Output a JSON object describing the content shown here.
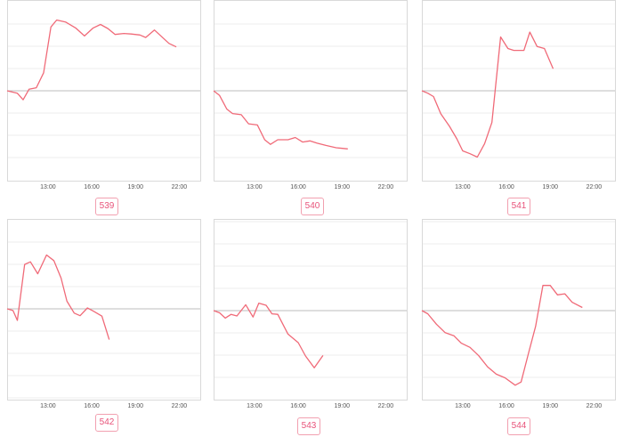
{
  "style": {
    "line_color": "#f06a78",
    "grid_color": "#eeeeee",
    "baseline_color": "#bdbdbd",
    "frame_color": "#d9d9d9",
    "badge_color": "#e8537a"
  },
  "chart_data": [
    {
      "type": "line",
      "id": "539",
      "x_ticks": [
        "13:00",
        "16:00",
        "19:00",
        "22:00"
      ],
      "x_range": [
        10.2,
        23.5
      ],
      "values": [
        [
          10.2,
          0
        ],
        [
          10.9,
          -0.05
        ],
        [
          11.3,
          -0.18
        ],
        [
          11.7,
          0.03
        ],
        [
          12.2,
          0.06
        ],
        [
          12.7,
          0.36
        ],
        [
          13.2,
          1.28
        ],
        [
          13.6,
          1.42
        ],
        [
          14.2,
          1.38
        ],
        [
          14.9,
          1.26
        ],
        [
          15.5,
          1.1
        ],
        [
          16.1,
          1.26
        ],
        [
          16.6,
          1.33
        ],
        [
          17.1,
          1.25
        ],
        [
          17.6,
          1.13
        ],
        [
          18.2,
          1.15
        ],
        [
          18.7,
          1.14
        ],
        [
          19.3,
          1.12
        ],
        [
          19.7,
          1.07
        ],
        [
          20.3,
          1.22
        ],
        [
          21.3,
          0.95
        ],
        [
          21.8,
          0.88
        ]
      ]
    },
    {
      "type": "line",
      "id": "540",
      "x_ticks": [
        "13:00",
        "16:00",
        "19:00",
        "22:00"
      ],
      "x_range": [
        10.2,
        23.5
      ],
      "values": [
        [
          10.2,
          0
        ],
        [
          10.6,
          -0.08
        ],
        [
          11.1,
          -0.32
        ],
        [
          11.5,
          -0.4
        ],
        [
          12.1,
          -0.42
        ],
        [
          12.6,
          -0.58
        ],
        [
          13.2,
          -0.6
        ],
        [
          13.7,
          -0.86
        ],
        [
          14.1,
          -0.94
        ],
        [
          14.6,
          -0.86
        ],
        [
          15.3,
          -0.86
        ],
        [
          15.8,
          -0.82
        ],
        [
          16.3,
          -0.9
        ],
        [
          16.8,
          -0.88
        ],
        [
          17.3,
          -0.92
        ],
        [
          17.9,
          -0.96
        ],
        [
          18.6,
          -1.0
        ],
        [
          19.4,
          -1.02
        ]
      ]
    },
    {
      "type": "line",
      "id": "541",
      "x_ticks": [
        "13:00",
        "16:00",
        "19:00",
        "22:00"
      ],
      "x_range": [
        10.2,
        23.5
      ],
      "values": [
        [
          10.2,
          0
        ],
        [
          10.6,
          -0.05
        ],
        [
          11.0,
          -0.12
        ],
        [
          11.5,
          -0.48
        ],
        [
          12.1,
          -0.74
        ],
        [
          12.6,
          -1.0
        ],
        [
          13.0,
          -1.25
        ],
        [
          13.5,
          -1.31
        ],
        [
          14.0,
          -1.38
        ],
        [
          14.5,
          -1.1
        ],
        [
          15.0,
          -0.66
        ],
        [
          15.6,
          1.12
        ],
        [
          16.1,
          0.88
        ],
        [
          16.5,
          0.84
        ],
        [
          17.2,
          0.84
        ],
        [
          17.6,
          1.22
        ],
        [
          18.1,
          0.92
        ],
        [
          18.6,
          0.88
        ],
        [
          19.2,
          0.46
        ]
      ]
    },
    {
      "type": "line",
      "id": "542",
      "x_ticks": [
        "13:00",
        "16:00",
        "19:00",
        "22:00"
      ],
      "x_range": [
        10.2,
        23.5
      ],
      "values": [
        [
          10.2,
          0
        ],
        [
          10.6,
          -0.04
        ],
        [
          10.9,
          -0.27
        ],
        [
          11.4,
          1.04
        ],
        [
          11.8,
          1.1
        ],
        [
          12.3,
          0.82
        ],
        [
          12.9,
          1.26
        ],
        [
          13.4,
          1.13
        ],
        [
          13.9,
          0.72
        ],
        [
          14.3,
          0.18
        ],
        [
          14.8,
          -0.1
        ],
        [
          15.2,
          -0.16
        ],
        [
          15.7,
          0.02
        ],
        [
          16.1,
          -0.05
        ],
        [
          16.7,
          -0.17
        ],
        [
          17.2,
          -0.72
        ]
      ]
    },
    {
      "type": "line",
      "id": "543",
      "x_ticks": [
        "13:00",
        "16:00",
        "19:00",
        "22:00"
      ],
      "x_range": [
        10.2,
        23.5
      ],
      "values": [
        [
          10.2,
          0
        ],
        [
          10.6,
          -0.04
        ],
        [
          11.0,
          -0.14
        ],
        [
          11.4,
          -0.07
        ],
        [
          11.8,
          -0.1
        ],
        [
          12.4,
          0.11
        ],
        [
          12.9,
          -0.12
        ],
        [
          13.3,
          0.14
        ],
        [
          13.8,
          0.1
        ],
        [
          14.2,
          -0.06
        ],
        [
          14.6,
          -0.07
        ],
        [
          15.3,
          -0.44
        ],
        [
          16.0,
          -0.6
        ],
        [
          16.5,
          -0.85
        ],
        [
          17.1,
          -1.07
        ],
        [
          17.7,
          -0.84
        ]
      ]
    },
    {
      "type": "line",
      "id": "544",
      "x_ticks": [
        "13:00",
        "16:00",
        "19:00",
        "22:00"
      ],
      "x_range": [
        10.2,
        23.5
      ],
      "values": [
        [
          10.2,
          0
        ],
        [
          10.6,
          -0.06
        ],
        [
          11.2,
          -0.26
        ],
        [
          11.8,
          -0.42
        ],
        [
          12.4,
          -0.48
        ],
        [
          12.9,
          -0.62
        ],
        [
          13.5,
          -0.7
        ],
        [
          14.1,
          -0.86
        ],
        [
          14.7,
          -1.07
        ],
        [
          15.3,
          -1.21
        ],
        [
          15.9,
          -1.28
        ],
        [
          16.6,
          -1.42
        ],
        [
          17.0,
          -1.36
        ],
        [
          17.5,
          -0.82
        ],
        [
          18.0,
          -0.3
        ],
        [
          18.5,
          0.48
        ],
        [
          19.0,
          0.48
        ],
        [
          19.5,
          0.3
        ],
        [
          20.0,
          0.32
        ],
        [
          20.5,
          0.16
        ],
        [
          21.2,
          0.06
        ]
      ]
    }
  ]
}
